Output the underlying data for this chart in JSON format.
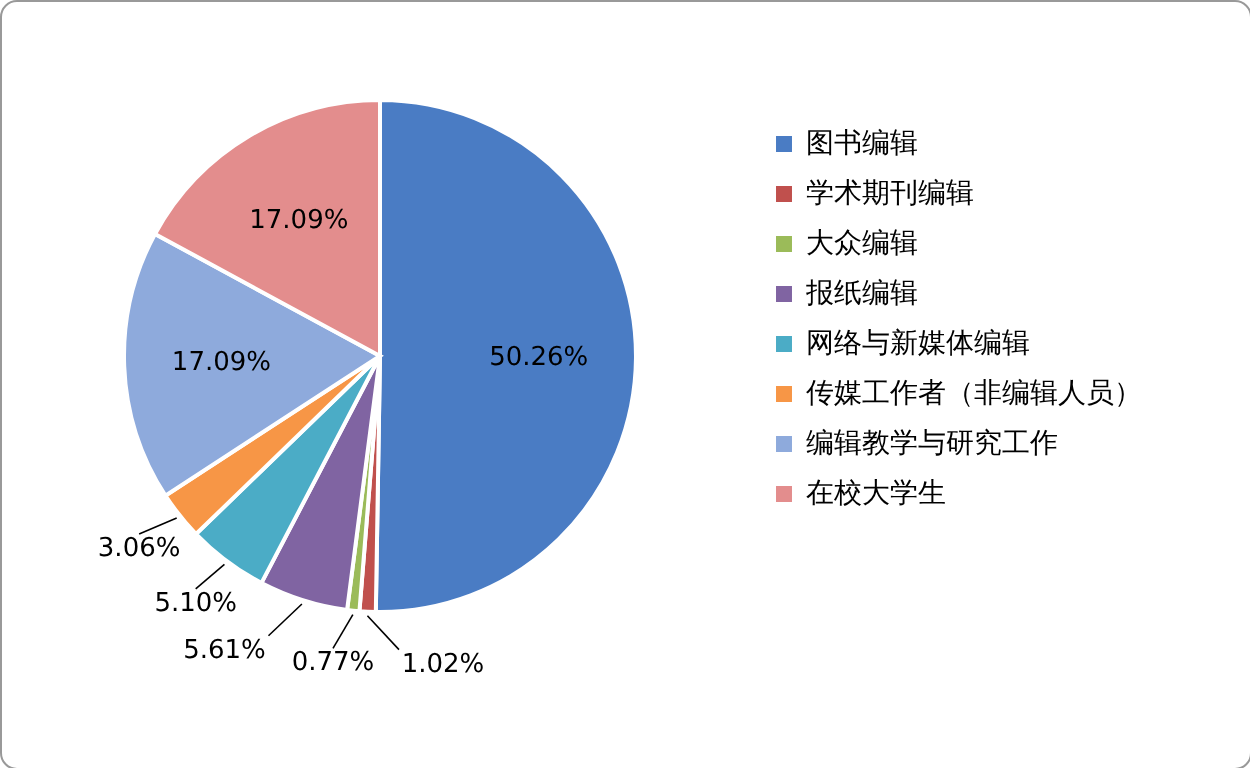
{
  "chart_data": {
    "type": "pie",
    "categories": [
      "图书编辑",
      "学术期刊编辑",
      "大众编辑",
      "报纸编辑",
      "网络与新媒体编辑",
      "传媒工作者（非编辑人员）",
      "编辑教学与研究工作",
      "在校大学生"
    ],
    "values": [
      50.26,
      1.02,
      0.77,
      5.61,
      5.1,
      3.06,
      17.09,
      17.09
    ],
    "colors": [
      "#4a7cc4",
      "#c0504d",
      "#9bbb59",
      "#8064a2",
      "#4bacc6",
      "#f79646",
      "#8eaadc",
      "#e38d8d"
    ],
    "value_labels": [
      "50.26%",
      "1.02%",
      "0.77%",
      "5.61%",
      "5.10%",
      "3.06%",
      "17.09%",
      "17.09%"
    ],
    "legend": "right"
  }
}
